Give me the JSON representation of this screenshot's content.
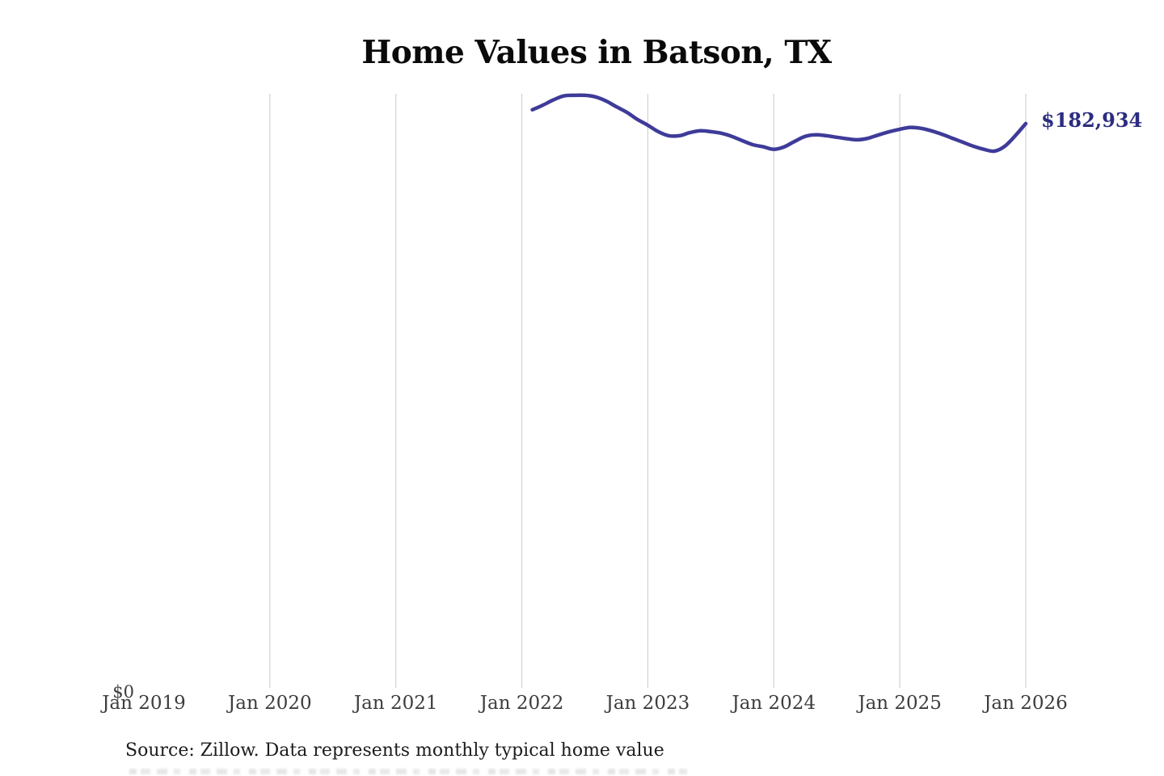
{
  "title": "Home Values in Batson, TX",
  "footer": {
    "source": "Source: Zillow. Data represents monthly typical home value"
  },
  "chart_data": {
    "type": "line",
    "title": "Home Values in Batson, TX",
    "series_name": "Monthly typical home value",
    "x": [
      "Feb 2022",
      "Mar 2022",
      "Apr 2022",
      "May 2022",
      "Jun 2022",
      "Jul 2022",
      "Aug 2022",
      "Sep 2022",
      "Oct 2022",
      "Nov 2022",
      "Dec 2022",
      "Jan 2023",
      "Feb 2023",
      "Mar 2023",
      "Apr 2023",
      "May 2023",
      "Jun 2023",
      "Jul 2023",
      "Aug 2023",
      "Sep 2023",
      "Oct 2023",
      "Nov 2023",
      "Dec 2023",
      "Jan 2024",
      "Feb 2024",
      "Mar 2024",
      "Apr 2024",
      "May 2024",
      "Jun 2024",
      "Jul 2024",
      "Aug 2024",
      "Sep 2024",
      "Oct 2024",
      "Nov 2024",
      "Dec 2024",
      "Jan 2025",
      "Feb 2025",
      "Mar 2025",
      "Apr 2025",
      "May 2025",
      "Jun 2025",
      "Jul 2025",
      "Aug 2025",
      "Sep 2025",
      "Oct 2025",
      "Nov 2025",
      "Dec 2025",
      "Jan 2026"
    ],
    "values": [
      187400,
      188900,
      190600,
      191900,
      192100,
      192100,
      191600,
      190300,
      188400,
      186600,
      184300,
      182400,
      180300,
      179000,
      179000,
      180000,
      180600,
      180300,
      179800,
      178800,
      177400,
      176100,
      175400,
      174600,
      175400,
      177200,
      178800,
      179300,
      179000,
      178500,
      178000,
      177700,
      178200,
      179300,
      180300,
      181100,
      181700,
      181400,
      180600,
      179500,
      178200,
      176900,
      175600,
      174600,
      174000,
      175600,
      179000,
      182934
    ],
    "x_ticks": [
      "Jan 2019",
      "Jan 2020",
      "Jan 2021",
      "Jan 2022",
      "Jan 2023",
      "Jan 2024",
      "Jan 2025",
      "Jan 2026"
    ],
    "x_ticks_gridline": [
      false,
      true,
      true,
      true,
      true,
      true,
      true,
      true
    ],
    "xlabel": "",
    "ylabel": "",
    "y_zero_label": "$0",
    "end_label": "$182,934",
    "end_value": 182934,
    "ylim": [
      0,
      192600
    ],
    "grid": "vertical-only",
    "legend": "none",
    "line_color": "#3e3b99",
    "end_label_color": "#2c2d80",
    "grid_color": "#d2d2d2",
    "tick_label_color": "#3d3d3d"
  }
}
